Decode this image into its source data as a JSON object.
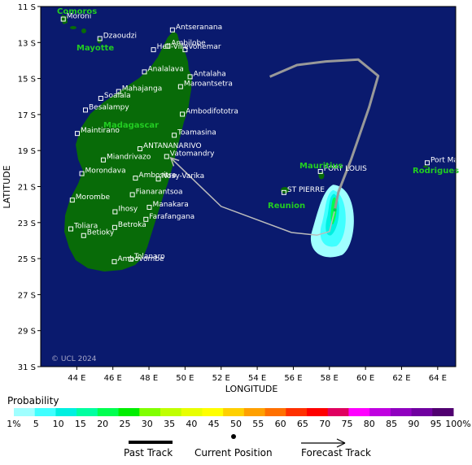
{
  "axes": {
    "ylabel": "LATITUDE",
    "xlabel": "LONGITUDE",
    "lat_ticks": [
      "11 S",
      "13 S",
      "15 S",
      "17 S",
      "19 S",
      "21 S",
      "23 S",
      "25 S",
      "27 S",
      "29 S",
      "31 S"
    ],
    "lon_ticks": [
      "44 E",
      "46 E",
      "48 E",
      "50 E",
      "52 E",
      "54 E",
      "56 E",
      "58 E",
      "60 E",
      "62 E",
      "64 E"
    ]
  },
  "regions": {
    "comoros": "Comoros",
    "mayotte": "Mayotte",
    "madagascar": "Madagascar",
    "mauritius": "Mauritius",
    "reunion": "Reunion",
    "rodrigues": "Rodrigues"
  },
  "places": [
    {
      "name": "Moroni",
      "lon": 43.25,
      "lat": -11.7
    },
    {
      "name": "Dzaoudzi",
      "lon": 45.28,
      "lat": -12.78
    },
    {
      "name": "Antseranana",
      "lon": 49.3,
      "lat": -12.3
    },
    {
      "name": "Ambilobe",
      "lon": 49.05,
      "lat": -13.2
    },
    {
      "name": "Vohemar",
      "lon": 50.0,
      "lat": -13.4
    },
    {
      "name": "Hell-Ville",
      "lon": 48.25,
      "lat": -13.4
    },
    {
      "name": "Analalava",
      "lon": 47.75,
      "lat": -14.63
    },
    {
      "name": "Antalaha",
      "lon": 50.28,
      "lat": -14.9
    },
    {
      "name": "Maroantsetra",
      "lon": 49.75,
      "lat": -15.45
    },
    {
      "name": "Mahajanga",
      "lon": 46.32,
      "lat": -15.72
    },
    {
      "name": "Soalala",
      "lon": 45.33,
      "lat": -16.1
    },
    {
      "name": "Besalampy",
      "lon": 44.48,
      "lat": -16.75
    },
    {
      "name": "Ambodifototra",
      "lon": 49.85,
      "lat": -16.98
    },
    {
      "name": "Maintirano",
      "lon": 44.03,
      "lat": -18.05
    },
    {
      "name": "Toamasina",
      "lon": 49.4,
      "lat": -18.15
    },
    {
      "name": "ANTANANARIVO",
      "lon": 47.5,
      "lat": -18.9
    },
    {
      "name": "Vatomandry",
      "lon": 48.98,
      "lat": -19.33
    },
    {
      "name": "Miandrivazo",
      "lon": 45.47,
      "lat": -19.52
    },
    {
      "name": "Morondava",
      "lon": 44.28,
      "lat": -20.28
    },
    {
      "name": "Ambositra",
      "lon": 47.25,
      "lat": -20.53
    },
    {
      "name": "Nosy-Varika",
      "lon": 48.52,
      "lat": -20.58
    },
    {
      "name": "Fianarantsoa",
      "lon": 47.08,
      "lat": -21.45
    },
    {
      "name": "Morombe",
      "lon": 43.75,
      "lat": -21.75
    },
    {
      "name": "Ihosy",
      "lon": 46.12,
      "lat": -22.4
    },
    {
      "name": "Manakara",
      "lon": 48.02,
      "lat": -22.15
    },
    {
      "name": "Farafangana",
      "lon": 47.83,
      "lat": -22.82
    },
    {
      "name": "Betroka",
      "lon": 46.1,
      "lat": -23.27
    },
    {
      "name": "Toliara",
      "lon": 43.67,
      "lat": -23.35
    },
    {
      "name": "Betioky",
      "lon": 44.38,
      "lat": -23.72
    },
    {
      "name": "Tolanaro",
      "lon": 47.0,
      "lat": -25.03
    },
    {
      "name": "Ambovombe",
      "lon": 46.08,
      "lat": -25.17
    },
    {
      "name": "ST PIERRE",
      "lon": 55.48,
      "lat": -21.33
    },
    {
      "name": "PORT LOUIS",
      "lon": 57.5,
      "lat": -20.16
    },
    {
      "name": "Port Mathurin",
      "lon": 63.42,
      "lat": -19.68
    }
  ],
  "copyright": "© UCL 2024",
  "probability": {
    "title": "Probability",
    "labels": [
      "1%",
      "5",
      "10",
      "15",
      "20",
      "25",
      "30",
      "35",
      "40",
      "45",
      "50",
      "55",
      "60",
      "65",
      "70",
      "75",
      "80",
      "85",
      "90",
      "95",
      "100%"
    ],
    "colors": [
      "#a0ffff",
      "#40ffff",
      "#00f0e0",
      "#00ffa0",
      "#00ff50",
      "#00ee00",
      "#80ff00",
      "#c0ff00",
      "#e8ff00",
      "#ffff00",
      "#ffd000",
      "#ffa000",
      "#ff7000",
      "#ff3000",
      "#ff0000",
      "#e00060",
      "#ff00ff",
      "#c000e0",
      "#9000c0",
      "#7000a0",
      "#500070"
    ]
  },
  "legend": {
    "past": "Past Track",
    "current": "Current Position",
    "forecast": "Forecast Track"
  },
  "track": {
    "past": [
      [
        54.7,
        -14.9
      ],
      [
        56.2,
        -14.25
      ],
      [
        57.8,
        -14.05
      ],
      [
        59.6,
        -13.95
      ],
      [
        60.7,
        -14.85
      ],
      [
        60.2,
        -16.6
      ],
      [
        59.2,
        -19.5
      ],
      [
        58.5,
        -21.3
      ],
      [
        58.3,
        -22.3
      ]
    ],
    "current": [
      58.3,
      -22.3
    ],
    "forecast": [
      [
        58.3,
        -22.3
      ],
      [
        58.0,
        -23.5
      ],
      [
        57.3,
        -23.7
      ],
      [
        55.9,
        -23.55
      ],
      [
        52.0,
        -22.1
      ],
      [
        49.2,
        -19.4
      ]
    ]
  },
  "colors": {
    "ocean": "#0a1a6e",
    "land": "#086b08",
    "past_track": "#999999",
    "forecast_track": "#bbbbbb"
  }
}
